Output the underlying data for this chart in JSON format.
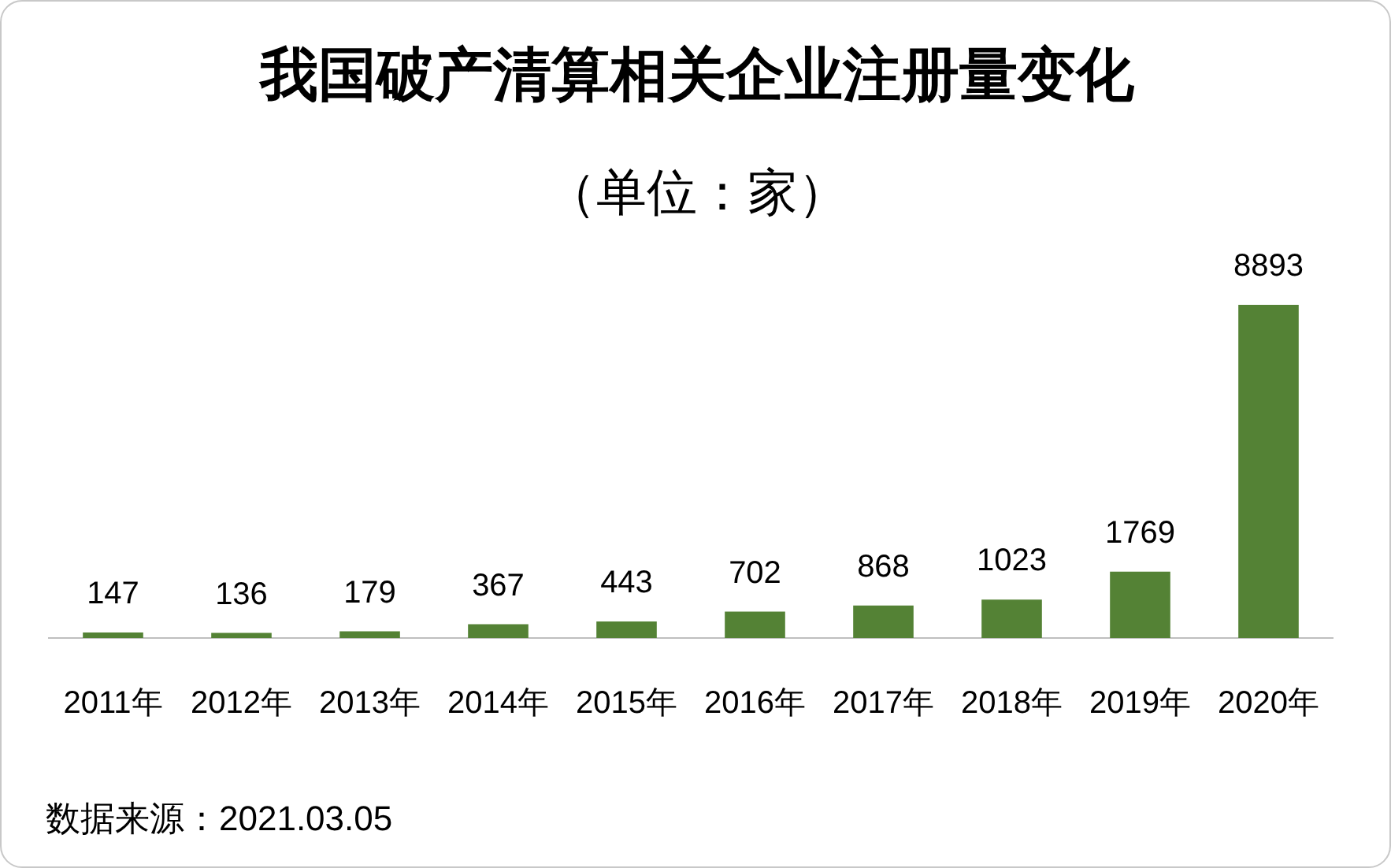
{
  "chart_data": {
    "type": "bar",
    "title": "我国破产清算相关企业注册量变化",
    "subtitle": "（单位：家）",
    "categories": [
      "2011年",
      "2012年",
      "2013年",
      "2014年",
      "2015年",
      "2016年",
      "2017年",
      "2018年",
      "2019年",
      "2020年"
    ],
    "values": [
      147,
      136,
      179,
      367,
      443,
      702,
      868,
      1023,
      1769,
      8893
    ],
    "color": "#548235",
    "data_labels": true,
    "tick_labels": "x",
    "grid": false,
    "legend": false,
    "annotations": [
      "数据来源：2021.03.05"
    ]
  }
}
